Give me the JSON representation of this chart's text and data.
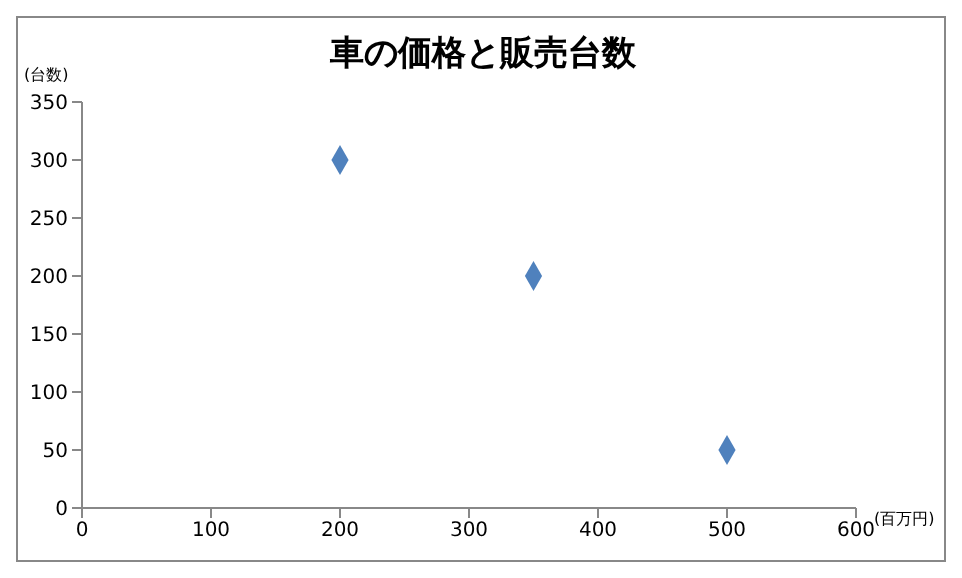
{
  "chart_data": {
    "type": "scatter",
    "title": "車の価格と販売台数",
    "xlabel": "(百万円)",
    "ylabel": "(台数)",
    "x": [
      200,
      350,
      500
    ],
    "series": [
      {
        "color": "#4f81bd",
        "values": [
          300,
          200,
          50
        ]
      }
    ],
    "xlim": [
      0,
      600
    ],
    "xticks": [
      0,
      100,
      200,
      300,
      400,
      500,
      600
    ],
    "ylim": [
      0,
      350
    ],
    "yticks": [
      0,
      50,
      100,
      150,
      200,
      250,
      300,
      350
    ],
    "grid": false,
    "legend": false,
    "marker": "diamond"
  }
}
